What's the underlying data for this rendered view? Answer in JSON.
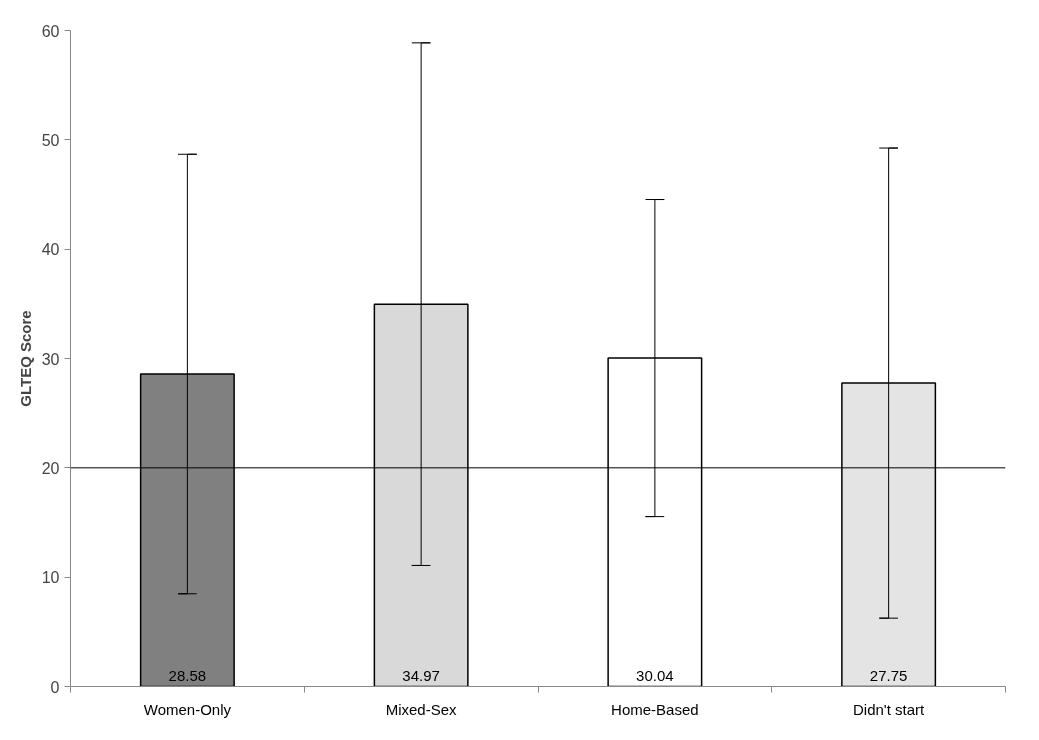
{
  "chart_data": {
    "type": "bar",
    "ylabel": "GLTEQ Score",
    "categories": [
      "Women-Only",
      "Mixed-Sex",
      "Home-Based",
      "Didn't start"
    ],
    "values": [
      28.58,
      34.97,
      30.04,
      27.75
    ],
    "colors": [
      "#808080",
      "#d9d9d9",
      "#ffffff",
      "#e4e4e4"
    ],
    "errors": [
      20.1,
      23.9,
      14.5,
      21.5
    ],
    "data_labels": true,
    "ref_lines": [
      {
        "axis": "y",
        "value": 20,
        "color": "#000000"
      }
    ],
    "ylim": [
      0,
      60
    ],
    "yticks": [
      0,
      10,
      20,
      30,
      40,
      50,
      60
    ],
    "grid": false
  }
}
